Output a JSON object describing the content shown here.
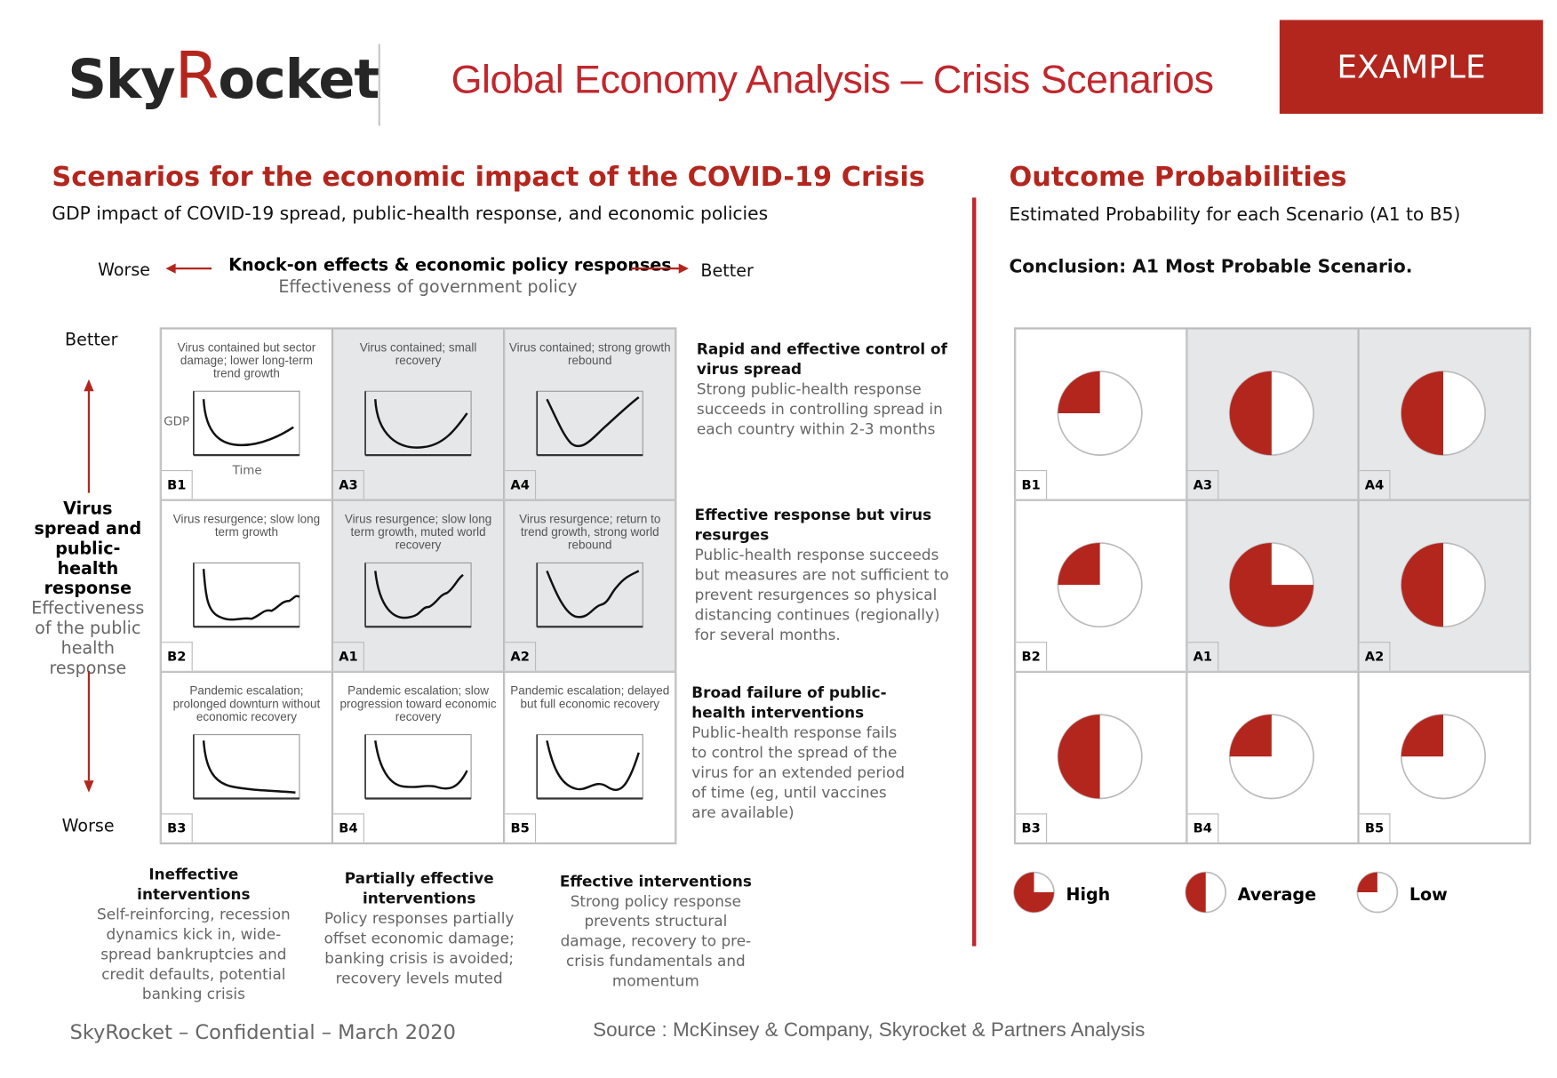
{
  "header": {
    "logo_text": "SkyRocket",
    "title": "Global Economy Analysis – Crisis Scenarios",
    "badge": "EXAMPLE"
  },
  "left": {
    "heading": "Scenarios for the economic impact of the COVID-19 Crisis",
    "subheading": "GDP impact of COVID-19 spread, public-health response, and economic policies",
    "x_axis": {
      "worse": "Worse",
      "better": "Better",
      "title": "Knock-on effects & economic policy responses",
      "subtitle": "Effectiveness of government policy"
    },
    "y_axis": {
      "better": "Better",
      "worse": "Worse",
      "title": "Virus spread and public-health response",
      "subtitle": "Effectiveness of the public health response"
    },
    "mini_axis": {
      "y": "GDP",
      "x": "Time"
    },
    "cells": [
      {
        "id": "B1",
        "caption": "Virus contained but sector damage; lower long-term trend growth",
        "shade": false,
        "curve": "u-slow"
      },
      {
        "id": "A3",
        "caption": "Virus contained; small recovery",
        "shade": true,
        "curve": "u"
      },
      {
        "id": "A4",
        "caption": "Virus contained; strong growth rebound",
        "shade": true,
        "curve": "v"
      },
      {
        "id": "B2",
        "caption": "Virus resurgence; slow long term growth",
        "shade": false,
        "curve": "l-wavy"
      },
      {
        "id": "A1",
        "caption": "Virus resurgence; slow long term growth, muted world recovery",
        "shade": true,
        "curve": "u-wavy"
      },
      {
        "id": "A2",
        "caption": "Virus resurgence; return to trend growth, strong world rebound",
        "shade": true,
        "curve": "v-wavy"
      },
      {
        "id": "B3",
        "caption": "Pandemic escalation; prolonged downturn without economic recovery",
        "shade": false,
        "curve": "l"
      },
      {
        "id": "B4",
        "caption": "Pandemic escalation; slow progression toward economic recovery",
        "shade": false,
        "curve": "w-slow"
      },
      {
        "id": "B5",
        "caption": "Pandemic escalation; delayed but full economic recovery",
        "shade": false,
        "curve": "w"
      }
    ],
    "row_descriptions": [
      {
        "title": "Rapid and effective control of virus spread",
        "text": "Strong public-health response succeeds in controlling spread in each country within 2-3 months"
      },
      {
        "title": "Effective response but virus resurges",
        "text": "Public-health response succeeds but measures are not sufficient to prevent resurgences so physical distancing continues (regionally) for several months."
      },
      {
        "title": "Broad failure of public-health interventions",
        "text": "Public-health response fails to control the spread of the virus for an extended period of time (eg, until vaccines are available)"
      }
    ],
    "column_descriptions": [
      {
        "title": "Ineffective interventions",
        "text": "Self-reinforcing, recession dynamics kick in, wide-spread bankruptcies and credit defaults, potential banking crisis"
      },
      {
        "title": "Partially effective interventions",
        "text": "Policy responses partially offset economic damage; banking crisis is avoided; recovery levels muted"
      },
      {
        "title": "Effective interventions",
        "text": "Strong policy response prevents structural damage, recovery to pre-crisis fundamentals and momentum"
      }
    ]
  },
  "right": {
    "heading": "Outcome Probabilities",
    "subheading": "Estimated Probability for each Scenario (A1 to B5)",
    "conclusion": "Conclusion: A1 Most Probable Scenario.",
    "probabilities": [
      {
        "id": "B1",
        "level": "Low",
        "fraction": 0.25,
        "shade": false
      },
      {
        "id": "A3",
        "level": "Average",
        "fraction": 0.5,
        "shade": true
      },
      {
        "id": "A4",
        "level": "Average",
        "fraction": 0.5,
        "shade": true
      },
      {
        "id": "B2",
        "level": "Low",
        "fraction": 0.25,
        "shade": false
      },
      {
        "id": "A1",
        "level": "High",
        "fraction": 0.75,
        "shade": true
      },
      {
        "id": "A2",
        "level": "Average",
        "fraction": 0.5,
        "shade": true
      },
      {
        "id": "B3",
        "level": "Average",
        "fraction": 0.5,
        "shade": false
      },
      {
        "id": "B4",
        "level": "Low",
        "fraction": 0.25,
        "shade": false
      },
      {
        "id": "B5",
        "level": "Low",
        "fraction": 0.25,
        "shade": false
      }
    ],
    "legend": [
      {
        "label": "High",
        "fraction": 0.75
      },
      {
        "label": "Average",
        "fraction": 0.5
      },
      {
        "label": "Low",
        "fraction": 0.25
      }
    ]
  },
  "footer": {
    "confidential": "SkyRocket – Confidential – March 2020",
    "source": "Source : McKinsey & Company, Skyrocket & Partners Analysis"
  },
  "colors": {
    "accent": "#b3261e",
    "cell_shade": "#e6e7e8"
  }
}
